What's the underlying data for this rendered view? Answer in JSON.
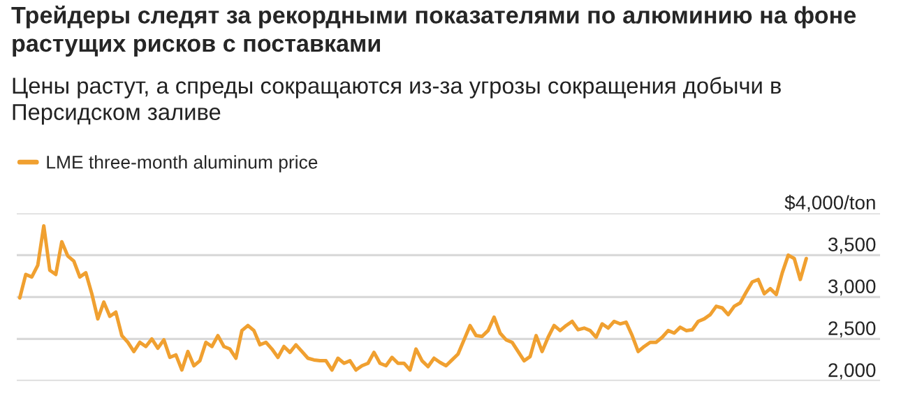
{
  "chart_data": {
    "type": "line",
    "title": "Трейдеры следят за рекордными показателями по алюминию на фоне растущих рисков с поставками",
    "subtitle": "Цены растут, а спреды сокращаются из-за угрозы сокращения добычи в Персидском заливе",
    "categories": [
      null,
      null,
      null,
      null,
      null,
      null,
      null,
      null,
      null,
      null,
      null,
      null,
      null,
      null,
      null,
      null,
      null,
      null,
      null,
      null,
      null,
      null,
      null,
      null,
      null,
      null,
      null,
      null,
      null,
      null,
      null,
      null,
      null,
      null,
      null,
      null,
      null,
      null,
      null,
      null,
      null,
      null,
      null,
      null,
      null,
      null,
      null,
      null,
      null,
      null,
      null,
      null,
      null,
      null,
      null,
      null,
      null,
      null,
      null,
      null,
      null,
      null,
      null,
      null,
      null,
      null,
      null,
      null,
      null,
      null,
      null,
      null,
      null,
      null,
      null,
      null,
      null,
      null,
      null,
      null,
      null,
      null,
      null,
      null,
      null,
      null,
      null,
      null,
      null,
      null,
      null,
      null,
      null,
      null,
      null,
      null,
      null,
      null,
      null,
      null,
      null,
      null,
      null,
      null,
      null,
      null,
      null,
      null,
      null,
      null,
      null,
      null,
      null,
      null,
      null,
      null,
      null,
      null,
      null,
      null,
      null,
      null,
      null,
      null,
      null,
      null,
      null,
      null,
      null,
      null,
      null,
      null
    ],
    "series": [
      {
        "name": "LME three-month aluminum price",
        "color": "#f0a030",
        "values": [
          2990,
          3270,
          3240,
          3380,
          3850,
          3320,
          3270,
          3660,
          3490,
          3430,
          3240,
          3290,
          3040,
          2740,
          2940,
          2770,
          2820,
          2540,
          2460,
          2350,
          2460,
          2410,
          2500,
          2390,
          2490,
          2280,
          2310,
          2130,
          2350,
          2180,
          2240,
          2460,
          2410,
          2540,
          2410,
          2380,
          2270,
          2600,
          2660,
          2600,
          2430,
          2460,
          2380,
          2280,
          2410,
          2340,
          2430,
          2350,
          2270,
          2250,
          2240,
          2240,
          2130,
          2270,
          2210,
          2240,
          2130,
          2180,
          2210,
          2340,
          2210,
          2180,
          2280,
          2210,
          2210,
          2130,
          2380,
          2240,
          2170,
          2270,
          2220,
          2180,
          2250,
          2320,
          2490,
          2660,
          2540,
          2530,
          2600,
          2760,
          2570,
          2490,
          2460,
          2350,
          2240,
          2290,
          2540,
          2350,
          2520,
          2660,
          2600,
          2660,
          2710,
          2610,
          2630,
          2600,
          2520,
          2680,
          2630,
          2710,
          2680,
          2700,
          2540,
          2350,
          2410,
          2460,
          2460,
          2520,
          2600,
          2570,
          2640,
          2600,
          2610,
          2710,
          2740,
          2790,
          2890,
          2870,
          2790,
          2890,
          2930,
          3060,
          3180,
          3210,
          3040,
          3100,
          3030,
          3290,
          3500,
          3460,
          3210,
          3460
        ]
      }
    ],
    "ylim": [
      2000,
      4000
    ],
    "yticks": [
      {
        "value": 2000,
        "label": "2,000"
      },
      {
        "value": 2500,
        "label": "2,500"
      },
      {
        "value": 3000,
        "label": "3,000"
      },
      {
        "value": 3500,
        "label": "3,500"
      },
      {
        "value": 4000,
        "label": "$4,000/ton"
      }
    ],
    "grid": "y",
    "legend": "top left",
    "tick_labels": "y"
  }
}
